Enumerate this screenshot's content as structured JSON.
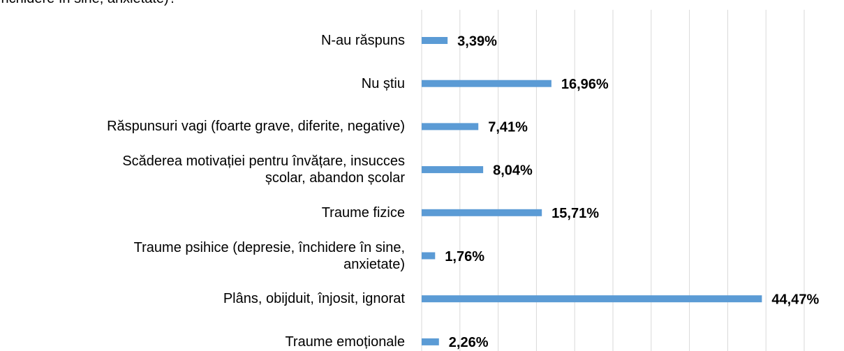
{
  "chart_data": {
    "type": "hbar",
    "title": "închidere în sine, anxietate)?",
    "categories": [
      "N-au răspuns",
      "Nu știu",
      "Răspunsuri vagi (foarte grave, diferite, negative)",
      "Scăderea motivației pentru învățare, insucces\nșcolar, abandon școlar",
      "Traume fizice",
      "Traume psihice (depresie, închidere în sine,\nanxietate)",
      "Plâns, obijduit, înjosit, ignorat",
      "Traume emoționale"
    ],
    "values": [
      3.39,
      16.96,
      7.41,
      8.04,
      15.71,
      1.76,
      44.47,
      2.26
    ],
    "value_labels": [
      "3,39%",
      "16,96%",
      "7,41%",
      "8,04%",
      "15,71%",
      "1,76%",
      "44,47%",
      "2,26%"
    ],
    "color": "#5b9bd5",
    "xlim": [
      0,
      50
    ],
    "xticks": [
      0,
      5,
      10,
      15,
      20,
      25,
      30,
      35,
      40,
      45,
      50
    ],
    "grid": true
  }
}
